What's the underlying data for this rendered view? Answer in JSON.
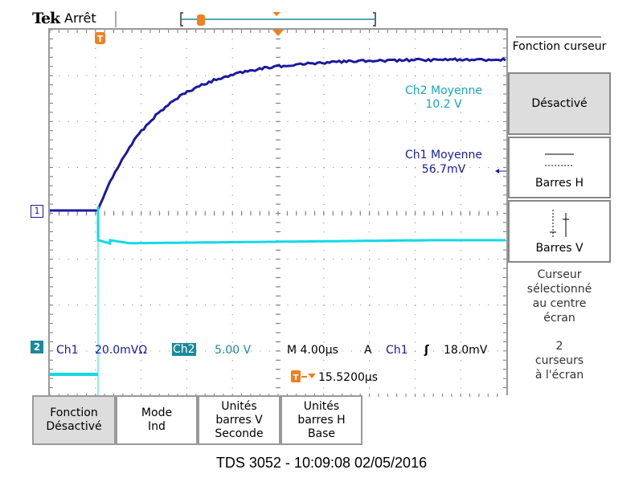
{
  "header": {
    "brand": "Tek",
    "status": "Arrêt",
    "trigger_icon": "T"
  },
  "readouts": {
    "ch2_mean_label": "Ch2 Moyenne",
    "ch2_mean_value": "10.2 V",
    "ch1_mean_label": "Ch1 Moyenne",
    "ch1_mean_value": "56.7mV",
    "ch1_marker": "1",
    "ch2_marker": "2",
    "ch1_name": "Ch1",
    "ch1_scale": "20.0mVΩ",
    "ch2_name": "Ch2",
    "ch2_scale": "5.00 V",
    "timebase": "M 4.00µs",
    "trigger_mode": "A",
    "trigger_source": "Ch1",
    "trigger_slope": "ʃ",
    "trigger_level": "18.0mV",
    "trigger_offset": "15.5200µs"
  },
  "side_menu": {
    "title": "Fonction curseur",
    "items": [
      {
        "label": "Désactivé"
      },
      {
        "label": "Barres H"
      },
      {
        "label": "Barres V"
      }
    ],
    "note1": "Curseur sélectionné au centre écran",
    "note2": "2 curseurs à l'écran"
  },
  "bottom_menu": [
    {
      "line1": "Fonction",
      "line2": "Désactivé"
    },
    {
      "line1": "Mode",
      "line2": "Ind"
    },
    {
      "line1": "Unités",
      "line2": "barres V",
      "line3": "Seconde"
    },
    {
      "line1": "Unités",
      "line2": "barres H",
      "line3": "Base"
    }
  ],
  "footer": "TDS 3052 - 10:09:08    02/05/2016",
  "colors": {
    "ch1": "#1a1aa0",
    "ch2": "#14d8e8",
    "trigger": "#f08020"
  }
}
